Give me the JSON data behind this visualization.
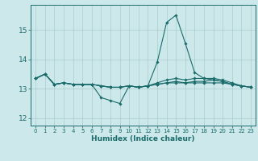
{
  "xlabel": "Humidex (Indice chaleur)",
  "ylabel": "",
  "bg_color": "#cce8ea",
  "grid_color": "#aacccc",
  "line_color": "#1a6b6b",
  "xlim": [
    -0.5,
    23.5
  ],
  "ylim": [
    11.75,
    15.85
  ],
  "yticks": [
    12,
    13,
    14,
    15
  ],
  "xticks": [
    0,
    1,
    2,
    3,
    4,
    5,
    6,
    7,
    8,
    9,
    10,
    11,
    12,
    13,
    14,
    15,
    16,
    17,
    18,
    19,
    20,
    21,
    22,
    23
  ],
  "lines": [
    {
      "x": [
        0,
        1,
        2,
        3,
        4,
        5,
        6,
        7,
        8,
        9,
        10,
        11,
        12,
        13,
        14,
        15,
        16,
        17,
        18,
        19,
        20,
        21,
        22,
        23
      ],
      "y": [
        13.35,
        13.5,
        13.15,
        13.2,
        13.15,
        13.15,
        13.15,
        13.1,
        13.05,
        13.05,
        13.1,
        13.05,
        13.1,
        13.9,
        15.25,
        15.5,
        14.55,
        13.55,
        13.35,
        13.3,
        13.25,
        13.15,
        13.1,
        13.05
      ]
    },
    {
      "x": [
        0,
        1,
        2,
        3,
        4,
        5,
        6,
        7,
        8,
        9,
        10,
        11,
        12,
        13,
        14,
        15,
        16,
        17,
        18,
        19,
        20,
        21,
        22,
        23
      ],
      "y": [
        13.35,
        13.5,
        13.15,
        13.2,
        13.15,
        13.15,
        13.15,
        12.7,
        12.6,
        12.5,
        13.1,
        13.05,
        13.1,
        13.15,
        13.2,
        13.2,
        13.2,
        13.2,
        13.2,
        13.2,
        13.2,
        13.15,
        13.1,
        13.05
      ]
    },
    {
      "x": [
        0,
        1,
        2,
        3,
        4,
        5,
        6,
        7,
        8,
        9,
        10,
        11,
        12,
        13,
        14,
        15,
        16,
        17,
        18,
        19,
        20,
        21,
        22,
        23
      ],
      "y": [
        13.35,
        13.5,
        13.15,
        13.2,
        13.15,
        13.15,
        13.15,
        13.1,
        13.05,
        13.05,
        13.1,
        13.05,
        13.1,
        13.15,
        13.2,
        13.25,
        13.2,
        13.25,
        13.25,
        13.3,
        13.25,
        13.15,
        13.1,
        13.05
      ]
    },
    {
      "x": [
        0,
        1,
        2,
        3,
        4,
        5,
        6,
        7,
        8,
        9,
        10,
        11,
        12,
        13,
        14,
        15,
        16,
        17,
        18,
        19,
        20,
        21,
        22,
        23
      ],
      "y": [
        13.35,
        13.5,
        13.15,
        13.2,
        13.15,
        13.15,
        13.15,
        13.1,
        13.05,
        13.05,
        13.1,
        13.05,
        13.1,
        13.2,
        13.3,
        13.35,
        13.3,
        13.35,
        13.35,
        13.35,
        13.3,
        13.2,
        13.1,
        13.05
      ]
    }
  ]
}
